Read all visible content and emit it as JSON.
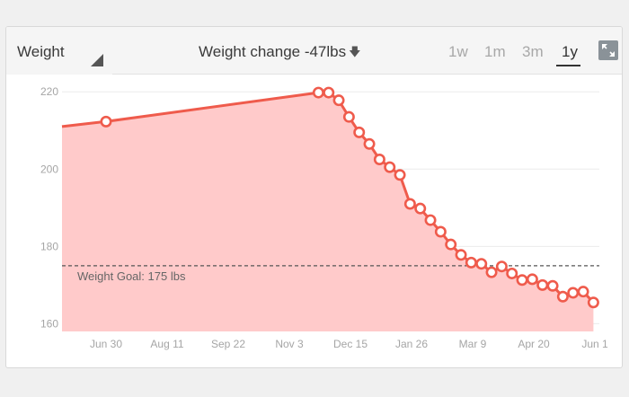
{
  "header": {
    "metric_label": "Weight",
    "change_label": "Weight change -47lbs",
    "change_arrow": "🡇",
    "ranges": [
      {
        "label": "1w",
        "active": false
      },
      {
        "label": "1m",
        "active": false
      },
      {
        "label": "3m",
        "active": false
      },
      {
        "label": "1y",
        "active": true
      }
    ],
    "expand_icon": "expand-icon"
  },
  "colors": {
    "line": "#ef5b4c",
    "fill": "#ffcaca",
    "goal_line": "#555555",
    "grid": "#ebebeb",
    "tick_text": "#a5a5a5",
    "goal_text": "#666666"
  },
  "chart_data": {
    "type": "area",
    "x_unit": "date",
    "x_ticks": [
      {
        "label": "Jun 30",
        "date": "2013-06-30"
      },
      {
        "label": "Aug 11",
        "date": "2013-08-11"
      },
      {
        "label": "Sep 22",
        "date": "2013-09-22"
      },
      {
        "label": "Nov 3",
        "date": "2013-11-03"
      },
      {
        "label": "Dec 15",
        "date": "2013-12-15"
      },
      {
        "label": "Jan 26",
        "date": "2014-01-26"
      },
      {
        "label": "Mar 9",
        "date": "2014-03-09"
      },
      {
        "label": "Apr 20",
        "date": "2014-04-20"
      },
      {
        "label": "Jun 1",
        "date": "2014-06-01"
      }
    ],
    "y_ticks": [
      160,
      180,
      200,
      220
    ],
    "ylim": [
      158,
      224
    ],
    "grid": true,
    "goal": {
      "value": 175,
      "label": "Weight Goal: 175 lbs"
    },
    "series": [
      {
        "line_start": {
          "date": "2013-06-02",
          "y": 211
        },
        "points": [
          {
            "date": "2013-06-30",
            "y": 212.3
          },
          {
            "date": "2013-11-23",
            "y": 219.8
          },
          {
            "date": "2013-11-30",
            "y": 219.8
          },
          {
            "date": "2013-12-07",
            "y": 217.8
          },
          {
            "date": "2013-12-14",
            "y": 213.5
          },
          {
            "date": "2013-12-21",
            "y": 209.5
          },
          {
            "date": "2013-12-28",
            "y": 206.5
          },
          {
            "date": "2014-01-04",
            "y": 202.5
          },
          {
            "date": "2014-01-11",
            "y": 200.5
          },
          {
            "date": "2014-01-18",
            "y": 198.5
          },
          {
            "date": "2014-01-25",
            "y": 191
          },
          {
            "date": "2014-02-01",
            "y": 189.8
          },
          {
            "date": "2014-02-08",
            "y": 186.8
          },
          {
            "date": "2014-02-15",
            "y": 183.8
          },
          {
            "date": "2014-02-22",
            "y": 180.5
          },
          {
            "date": "2014-03-01",
            "y": 177.8
          },
          {
            "date": "2014-03-08",
            "y": 175.8
          },
          {
            "date": "2014-03-15",
            "y": 175.5
          },
          {
            "date": "2014-03-22",
            "y": 173.3
          },
          {
            "date": "2014-03-29",
            "y": 174.8
          },
          {
            "date": "2014-04-05",
            "y": 173
          },
          {
            "date": "2014-04-12",
            "y": 171.3
          },
          {
            "date": "2014-04-19",
            "y": 171.5
          },
          {
            "date": "2014-04-26",
            "y": 170
          },
          {
            "date": "2014-05-03",
            "y": 169.8
          },
          {
            "date": "2014-05-10",
            "y": 167
          },
          {
            "date": "2014-05-17",
            "y": 168
          },
          {
            "date": "2014-05-24",
            "y": 168.3
          },
          {
            "date": "2014-05-31",
            "y": 165.5
          }
        ]
      }
    ]
  }
}
